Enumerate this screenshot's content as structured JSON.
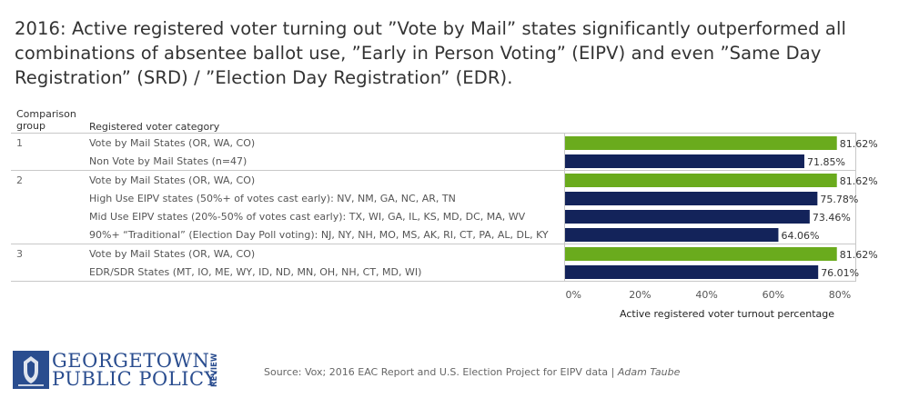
{
  "title": "2016: Active registered voter turning out ”Vote by Mail” states significantly outperformed all combinations of absentee ballot use, ”Early in Person Voting” (EIPV) and even ”Same Day Registration” (SRD) / ”Election Day Registration” (EDR).",
  "headers": {
    "group": "Comparison group",
    "group_line1": "Comparison",
    "group_line2": "group",
    "category": "Registered voter category"
  },
  "colors": {
    "green": "#6aab1d",
    "navy": "#13235a",
    "grid": "#c8c8c8"
  },
  "chart_data": {
    "type": "bar",
    "orientation": "horizontal",
    "title": "2016: Active registered voter turning out ”Vote by Mail” states significantly outperformed all combinations of absentee ballot use, ”Early in Person Voting” (EIPV) and even ”Same Day Registration” (SRD) / ”Election Day Registration” (EDR).",
    "xlabel": "Active registered voter turnout percentage",
    "xlim": [
      0,
      0.87
    ],
    "xticks": [
      "0%",
      "20%",
      "40%",
      "60%",
      "80%"
    ],
    "xtick_values": [
      0,
      0.2,
      0.4,
      0.6,
      0.8
    ],
    "groups": [
      {
        "group": "1",
        "rows": [
          {
            "label": "Vote by Mail States (OR, WA, CO)",
            "value": 81.62,
            "display": "81.62%",
            "color": "green"
          },
          {
            "label": "Non Vote by Mail States (n=47)",
            "value": 71.85,
            "display": "71.85%",
            "color": "navy"
          }
        ]
      },
      {
        "group": "2",
        "rows": [
          {
            "label": "Vote by Mail States (OR, WA, CO)",
            "value": 81.62,
            "display": "81.62%",
            "color": "green"
          },
          {
            "label": "High Use EIPV states (50%+ of votes cast early): NV, NM, GA, NC, AR, TN",
            "value": 75.78,
            "display": "75.78%",
            "color": "navy"
          },
          {
            "label": "Mid Use EIPV states (20%-50% of votes cast early): TX, WI, GA, IL, KS, MD, DC, MA, WV",
            "value": 73.46,
            "display": "73.46%",
            "color": "navy"
          },
          {
            "label": "90%+ “Traditional” (Election Day Poll voting): NJ, NY, NH, MO, MS, AK, RI, CT, PA, AL, DL, KY",
            "value": 64.06,
            "display": "64.06%",
            "color": "navy"
          }
        ]
      },
      {
        "group": "3",
        "rows": [
          {
            "label": "Vote by Mail States (OR, WA, CO)",
            "value": 81.62,
            "display": "81.62%",
            "color": "green"
          },
          {
            "label": "EDR/SDR States (MT, IO, ME, WY, ID, ND, MN, OH, NH, CT, MD, WI)",
            "value": 76.01,
            "display": "76.01%",
            "color": "navy"
          }
        ]
      }
    ]
  },
  "logo": {
    "line1": "GEORGETOWN",
    "line2": "PUBLIC POLICY",
    "side": "REVIEW"
  },
  "source": {
    "text": "Source: Vox; 2016 EAC Report and U.S. Election Project for EIPV data | ",
    "author": "Adam Taube"
  }
}
